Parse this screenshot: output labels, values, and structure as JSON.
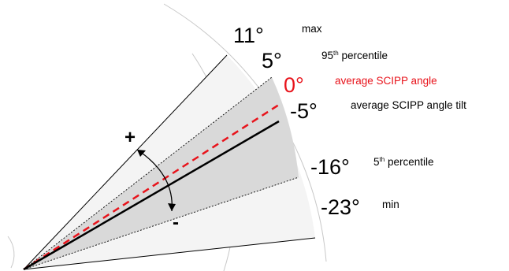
{
  "levels": {
    "max": {
      "angle": "11°",
      "label": "max"
    },
    "p95": {
      "angle": "5°",
      "label_main": "95",
      "label_sup": "th",
      "label_rest": " percentile"
    },
    "avg": {
      "angle": "0°",
      "label": "average SCIPP angle"
    },
    "tilt": {
      "angle": "-5°",
      "label": "average SCIPP angle tilt"
    },
    "p5": {
      "angle": "-16°",
      "label_main": "5",
      "label_sup": "th",
      "label_rest": " percentile"
    },
    "min": {
      "angle": "-23°",
      "label": "min"
    }
  },
  "signs": {
    "plus": "+",
    "minus": "-"
  },
  "colors": {
    "outer_band": "#f4f4f4",
    "inner_band": "#d9d9d9",
    "average_line": "#e8131b",
    "line": "#000000",
    "arcs": "#c4c4c4"
  }
}
